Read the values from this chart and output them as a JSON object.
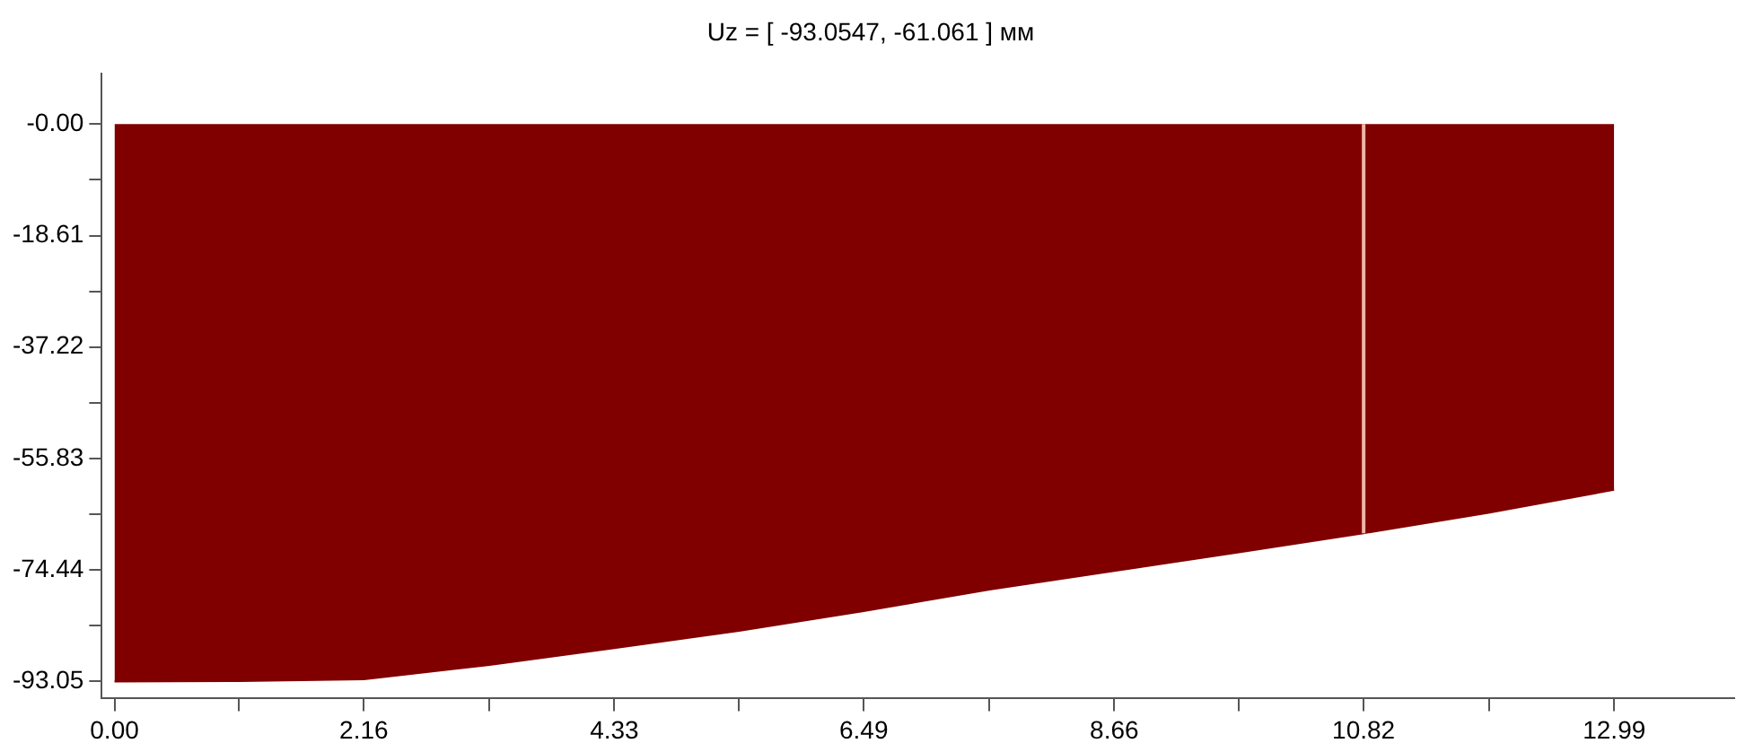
{
  "chart_data": {
    "type": "area",
    "title": "Uz = [ -93.0547, -61.061 ] мм",
    "x": [
      0,
      1.08,
      2.16,
      3.25,
      4.33,
      5.41,
      6.49,
      7.58,
      8.66,
      9.74,
      10.82,
      11.9,
      12.99
    ],
    "series": [
      {
        "color": "#800000",
        "values": [
          -93.05,
          -93.0,
          -92.7,
          -90.3,
          -87.5,
          -84.6,
          -81.3,
          -77.7,
          -74.6,
          -71.5,
          -68.3,
          -64.9,
          -61.06
        ]
      }
    ],
    "xlim": [
      -0.11,
      14.03
    ],
    "xticks": [
      {
        "value": 0,
        "label": "0.00"
      },
      {
        "value": 1.08,
        "label": null
      },
      2.16,
      {
        "value": 3.245,
        "label": null
      },
      4.33,
      {
        "value": 5.41,
        "label": null
      },
      6.49,
      {
        "value": 7.575,
        "label": null
      },
      8.66,
      {
        "value": 9.74,
        "label": null
      },
      10.82,
      {
        "value": 11.905,
        "label": null
      },
      12.99
    ],
    "ylim": [
      -95.9,
      8.5
    ],
    "yticks": [
      {
        "value": 0,
        "label": "-0.00"
      },
      {
        "value": -9.305,
        "label": null
      },
      -18.61,
      {
        "value": -27.915,
        "label": null
      },
      -37.22,
      {
        "value": -46.525,
        "label": null
      },
      -55.83,
      {
        "value": -65.135,
        "label": null
      },
      -74.44,
      {
        "value": -83.745,
        "label": null
      },
      -93.05
    ],
    "ref_lines": [
      {
        "axis": "x",
        "value": 10.82,
        "color": "#f0b4a8"
      }
    ],
    "grid": false,
    "legend": false
  }
}
